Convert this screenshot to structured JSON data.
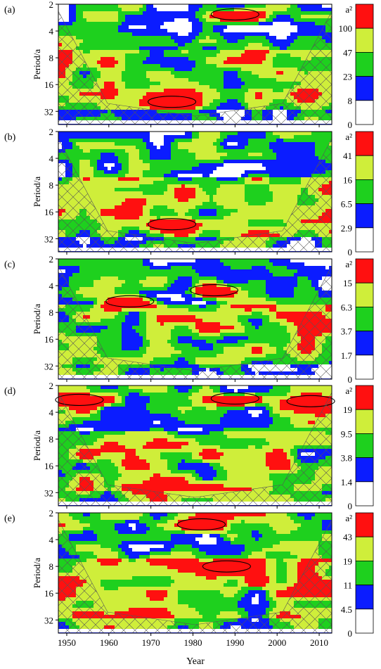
{
  "figure": {
    "xlabel": "Year",
    "ylabel": "Period/a",
    "colorbar_unit": "a²",
    "colors": [
      "#ffffff",
      "#0b1cff",
      "#1ed01e",
      "#cfee3a",
      "#ff1010"
    ],
    "contour_color": "#000000",
    "coi_hatch_color": "#555555"
  },
  "chart_data": [
    {
      "type": "heatmap",
      "panel_label": "(a)",
      "xlim": [
        1948,
        2013
      ],
      "x_ticks": [
        1950,
        1960,
        1970,
        1980,
        1990,
        2000,
        2010
      ],
      "y_ticks": [
        2,
        4,
        8,
        16,
        32
      ],
      "y_scale": "log2",
      "ylim": [
        2,
        45
      ],
      "colorbar_levels": [
        "a²",
        "100",
        "47",
        "23",
        "8",
        "0"
      ],
      "strong_regions": [
        {
          "x": 1990,
          "y": 2.6,
          "level": 4
        },
        {
          "x": 1975,
          "y": 25,
          "level": 4
        }
      ]
    },
    {
      "type": "heatmap",
      "panel_label": "(b)",
      "xlim": [
        1948,
        2013
      ],
      "x_ticks": [
        1950,
        1960,
        1970,
        1980,
        1990,
        2000,
        2010
      ],
      "y_ticks": [
        2,
        4,
        8,
        16,
        32
      ],
      "y_scale": "log2",
      "ylim": [
        2,
        45
      ],
      "colorbar_levels": [
        "a²",
        "41",
        "16",
        "6.5",
        "2.9",
        "0"
      ],
      "strong_regions": [
        {
          "x": 1975,
          "y": 22,
          "level": 4
        }
      ]
    },
    {
      "type": "heatmap",
      "panel_label": "(c)",
      "xlim": [
        1948,
        2013
      ],
      "x_ticks": [
        1950,
        1960,
        1970,
        1980,
        1990,
        2000,
        2010
      ],
      "y_ticks": [
        2,
        4,
        8,
        16,
        32
      ],
      "y_scale": "log2",
      "ylim": [
        2,
        45
      ],
      "colorbar_levels": [
        "a²",
        "15",
        "6.3",
        "3.7",
        "1.7",
        "0"
      ],
      "strong_regions": [
        {
          "x": 1965,
          "y": 6,
          "level": 4
        },
        {
          "x": 1985,
          "y": 4.5,
          "level": 4
        }
      ]
    },
    {
      "type": "heatmap",
      "panel_label": "(d)",
      "xlim": [
        1948,
        2013
      ],
      "x_ticks": [
        1950,
        1960,
        1970,
        1980,
        1990,
        2000,
        2010
      ],
      "y_ticks": [
        2,
        4,
        8,
        16,
        32
      ],
      "y_scale": "log2",
      "ylim": [
        2,
        45
      ],
      "colorbar_levels": [
        "a²",
        "19",
        "9.5",
        "3.8",
        "1.4",
        "0"
      ],
      "strong_regions": [
        {
          "x": 2008,
          "y": 3,
          "level": 4
        },
        {
          "x": 1990,
          "y": 2.8,
          "level": 4
        },
        {
          "x": 1953,
          "y": 2.9,
          "level": 4
        }
      ]
    },
    {
      "type": "heatmap",
      "panel_label": "(e)",
      "xlim": [
        1948,
        2013
      ],
      "x_ticks": [
        1950,
        1960,
        1970,
        1980,
        1990,
        2000,
        2010
      ],
      "y_ticks": [
        2,
        4,
        8,
        16,
        32
      ],
      "y_scale": "log2",
      "ylim": [
        2,
        45
      ],
      "colorbar_levels": [
        "a²",
        "43",
        "19",
        "11",
        "4.5",
        "0"
      ],
      "strong_regions": [
        {
          "x": 1982,
          "y": 2.7,
          "level": 4
        },
        {
          "x": 1988,
          "y": 8,
          "level": 4
        }
      ]
    }
  ]
}
